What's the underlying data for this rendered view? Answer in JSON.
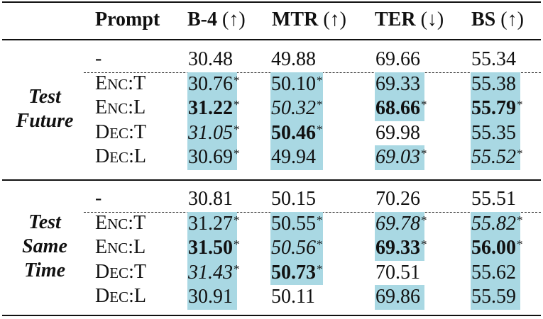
{
  "header": {
    "prompt": "Prompt",
    "columns": [
      {
        "name": "B-4",
        "arrow": "(↑)"
      },
      {
        "name": "MTR",
        "arrow": "(↑)"
      },
      {
        "name": "TER",
        "arrow": "(↓)"
      },
      {
        "name": "BS",
        "arrow": "(↑)"
      }
    ]
  },
  "groups": [
    {
      "label_lines": [
        "Test",
        "Future"
      ],
      "rows": [
        {
          "prompt": {
            "big": "-",
            "small": "",
            "suffix": ""
          },
          "cells": [
            {
              "value": "30.48",
              "star": "",
              "bold": false,
              "italic": false,
              "hl": false
            },
            {
              "value": "49.88",
              "star": "",
              "bold": false,
              "italic": false,
              "hl": false
            },
            {
              "value": "69.66",
              "star": "",
              "bold": false,
              "italic": false,
              "hl": false
            },
            {
              "value": "55.34",
              "star": "",
              "bold": false,
              "italic": false,
              "hl": false
            }
          ]
        },
        {
          "prompt": {
            "big": "E",
            "small": "NC",
            "suffix": ":T"
          },
          "cells": [
            {
              "value": "30.76",
              "star": "*",
              "bold": false,
              "italic": false,
              "hl": true
            },
            {
              "value": "50.10",
              "star": "*",
              "bold": false,
              "italic": false,
              "hl": true
            },
            {
              "value": "69.33",
              "star": "",
              "bold": false,
              "italic": false,
              "hl": true
            },
            {
              "value": "55.38",
              "star": "",
              "bold": false,
              "italic": false,
              "hl": true
            }
          ]
        },
        {
          "prompt": {
            "big": "E",
            "small": "NC",
            "suffix": ":L"
          },
          "cells": [
            {
              "value": "31.22",
              "star": "*",
              "bold": true,
              "italic": false,
              "hl": true
            },
            {
              "value": "50.32",
              "star": "*",
              "bold": false,
              "italic": true,
              "hl": true
            },
            {
              "value": "68.66",
              "star": "*",
              "bold": true,
              "italic": false,
              "hl": true
            },
            {
              "value": "55.79",
              "star": "*",
              "bold": true,
              "italic": false,
              "hl": true
            }
          ]
        },
        {
          "prompt": {
            "big": "D",
            "small": "EC",
            "suffix": ":T"
          },
          "cells": [
            {
              "value": "31.05",
              "star": "*",
              "bold": false,
              "italic": true,
              "hl": true
            },
            {
              "value": "50.46",
              "star": "*",
              "bold": true,
              "italic": false,
              "hl": true
            },
            {
              "value": "69.98",
              "star": "",
              "bold": false,
              "italic": false,
              "hl": false
            },
            {
              "value": "55.35",
              "star": "",
              "bold": false,
              "italic": false,
              "hl": true
            }
          ]
        },
        {
          "prompt": {
            "big": "D",
            "small": "EC",
            "suffix": ":L"
          },
          "cells": [
            {
              "value": "30.69",
              "star": "*",
              "bold": false,
              "italic": false,
              "hl": true
            },
            {
              "value": "49.94",
              "star": "",
              "bold": false,
              "italic": false,
              "hl": true
            },
            {
              "value": "69.03",
              "star": "*",
              "bold": false,
              "italic": true,
              "hl": true
            },
            {
              "value": "55.52",
              "star": "*",
              "bold": false,
              "italic": true,
              "hl": true
            }
          ]
        }
      ]
    },
    {
      "label_lines": [
        "Test",
        "Same",
        "Time"
      ],
      "rows": [
        {
          "prompt": {
            "big": "-",
            "small": "",
            "suffix": ""
          },
          "cells": [
            {
              "value": "30.81",
              "star": "",
              "bold": false,
              "italic": false,
              "hl": false
            },
            {
              "value": "50.15",
              "star": "",
              "bold": false,
              "italic": false,
              "hl": false
            },
            {
              "value": "70.26",
              "star": "",
              "bold": false,
              "italic": false,
              "hl": false
            },
            {
              "value": "55.51",
              "star": "",
              "bold": false,
              "italic": false,
              "hl": false
            }
          ]
        },
        {
          "prompt": {
            "big": "E",
            "small": "NC",
            "suffix": ":T"
          },
          "cells": [
            {
              "value": "31.27",
              "star": "*",
              "bold": false,
              "italic": false,
              "hl": true
            },
            {
              "value": "50.55",
              "star": "*",
              "bold": false,
              "italic": false,
              "hl": true
            },
            {
              "value": "69.78",
              "star": "*",
              "bold": false,
              "italic": true,
              "hl": true
            },
            {
              "value": "55.82",
              "star": "*",
              "bold": false,
              "italic": true,
              "hl": true
            }
          ]
        },
        {
          "prompt": {
            "big": "E",
            "small": "NC",
            "suffix": ":L"
          },
          "cells": [
            {
              "value": "31.50",
              "star": "*",
              "bold": true,
              "italic": false,
              "hl": true
            },
            {
              "value": "50.56",
              "star": "*",
              "bold": false,
              "italic": true,
              "hl": true
            },
            {
              "value": "69.33",
              "star": "*",
              "bold": true,
              "italic": false,
              "hl": true
            },
            {
              "value": "56.00",
              "star": "*",
              "bold": true,
              "italic": false,
              "hl": true
            }
          ]
        },
        {
          "prompt": {
            "big": "D",
            "small": "EC",
            "suffix": ":T"
          },
          "cells": [
            {
              "value": "31.43",
              "star": "*",
              "bold": false,
              "italic": true,
              "hl": true
            },
            {
              "value": "50.73",
              "star": "*",
              "bold": true,
              "italic": false,
              "hl": true
            },
            {
              "value": "70.51",
              "star": "",
              "bold": false,
              "italic": false,
              "hl": false
            },
            {
              "value": "55.62",
              "star": "",
              "bold": false,
              "italic": false,
              "hl": true
            }
          ]
        },
        {
          "prompt": {
            "big": "D",
            "small": "EC",
            "suffix": ":L"
          },
          "cells": [
            {
              "value": "30.91",
              "star": "",
              "bold": false,
              "italic": false,
              "hl": true
            },
            {
              "value": "50.11",
              "star": "",
              "bold": false,
              "italic": false,
              "hl": false
            },
            {
              "value": "69.86",
              "star": "",
              "bold": false,
              "italic": false,
              "hl": true
            },
            {
              "value": "55.59",
              "star": "",
              "bold": false,
              "italic": false,
              "hl": true
            }
          ]
        }
      ]
    }
  ]
}
